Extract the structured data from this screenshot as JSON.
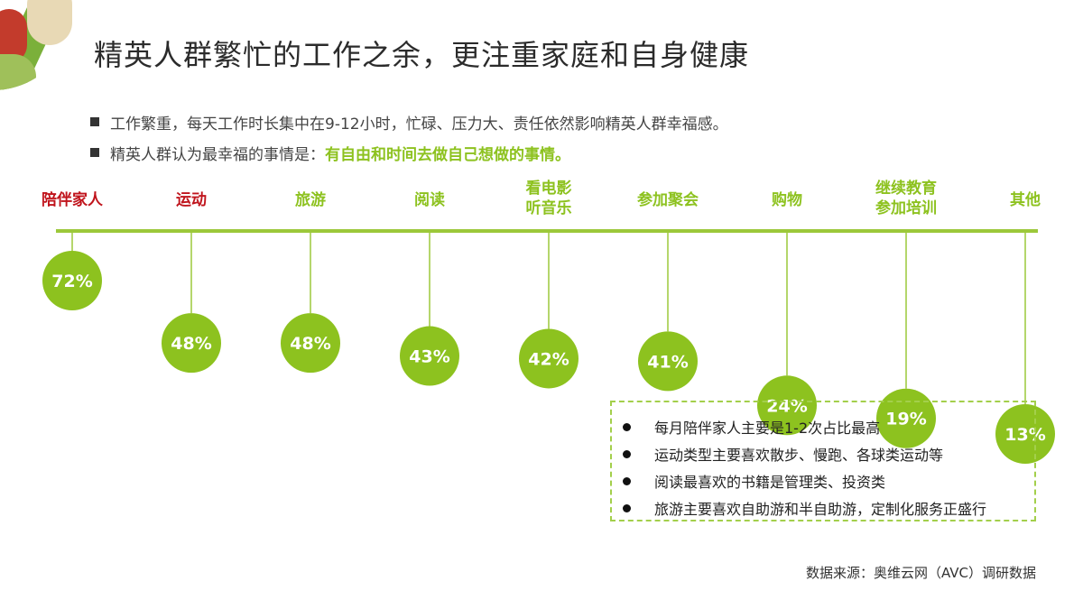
{
  "title": "精英人群繁忙的工作之余，更注重家庭和自身健康",
  "bullets": [
    {
      "text": "工作繁重，每天工作时长集中在9-12小时，忙碌、压力大、责任依然影响精英人群幸福感。",
      "highlight": ""
    },
    {
      "text": "精英人群认为最幸福的事情是：",
      "highlight": "有自由和时间去做自己想做的事情。"
    }
  ],
  "colors": {
    "accent_green": "#8dc21f",
    "highlight_red": "#c0141c",
    "line_green": "#9cc83a"
  },
  "chart_data": {
    "type": "bar",
    "unit": "%",
    "categories": [
      "陪伴家人",
      "运动",
      "旅游",
      "阅读",
      "看电影\n听音乐",
      "参加聚会",
      "购物",
      "继续教育\n参加培训",
      "其他"
    ],
    "values": [
      72,
      48,
      48,
      43,
      42,
      41,
      24,
      19,
      13
    ],
    "label_colors": [
      "#c0141c",
      "#c0141c",
      "#8dc21f",
      "#8dc21f",
      "#8dc21f",
      "#8dc21f",
      "#8dc21f",
      "#8dc21f",
      "#8dc21f"
    ]
  },
  "notes": [
    "每月陪伴家人主要是1-2次占比最高",
    "运动类型主要喜欢散步、慢跑、各球类运动等",
    "阅读最喜欢的书籍是管理类、投资类",
    "旅游主要喜欢自助游和半自助游，定制化服务正盛行"
  ],
  "source": "数据来源：奥维云网（AVC）调研数据"
}
